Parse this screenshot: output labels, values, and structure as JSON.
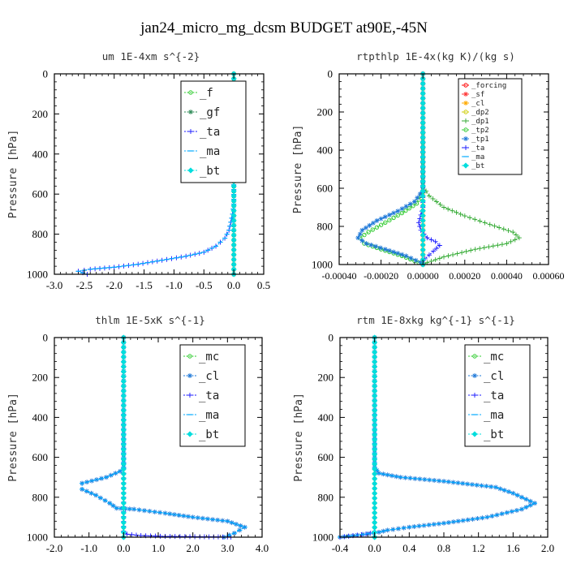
{
  "figure": {
    "title": "jan24_micro_mg_dcsm  BUDGET at90E,-45N"
  },
  "chart_data": [
    {
      "type": "line",
      "title": "um  1E-4xm s^{-2}",
      "ylabel": "Pressure [hPa]",
      "xlim": [
        -3.0,
        0.5
      ],
      "ylim": [
        1000,
        0
      ],
      "xticks": [
        "-3.0",
        "-2.5",
        "-2.0",
        "-1.5",
        "-1.0",
        "-0.5",
        "0.0",
        "0.5"
      ],
      "yticks": [
        "0",
        "200",
        "400",
        "600",
        "800",
        "1000"
      ],
      "legend": [
        "_f",
        "_gf",
        "_ta",
        "_ma",
        "_bt"
      ],
      "series": [
        {
          "name": "_f",
          "color": "#33cc33",
          "marker": "circle",
          "x": [
            0.0,
            0.0
          ],
          "y": [
            0,
            1000
          ]
        },
        {
          "name": "_gf",
          "color": "#2e8b57",
          "marker": "star",
          "x": [
            0.0,
            0.0
          ],
          "y": [
            0,
            1000
          ]
        },
        {
          "name": "_ta",
          "color": "#1a1aff",
          "marker": "plus",
          "x": [
            0.0,
            0.0,
            -0.02,
            -0.05,
            -0.08,
            -0.15,
            -0.3,
            -0.5,
            -0.8,
            -1.2,
            -1.6,
            -2.0,
            -2.4,
            -2.6,
            -2.45
          ],
          "y": [
            0,
            650,
            700,
            740,
            780,
            820,
            860,
            890,
            910,
            930,
            950,
            965,
            975,
            985,
            1000
          ]
        },
        {
          "name": "_ma",
          "color": "#00aaff",
          "marker": "dash",
          "x": [
            0.0,
            0.0,
            -0.02,
            -0.05,
            -0.08,
            -0.15,
            -0.3,
            -0.5,
            -0.8,
            -1.2,
            -1.6,
            -2.0,
            -2.4,
            -2.6,
            -2.45
          ],
          "y": [
            0,
            650,
            700,
            740,
            780,
            820,
            860,
            890,
            910,
            930,
            950,
            965,
            975,
            985,
            1000
          ]
        },
        {
          "name": "_bt",
          "color": "#00dddd",
          "marker": "diamond",
          "x": [
            0.0,
            0.0
          ],
          "y": [
            0,
            1000
          ]
        }
      ]
    },
    {
      "type": "line",
      "title": "rtpthlp  1E-4x(kg K)/(kg s)",
      "ylabel": "Pressure [hPa]",
      "xlim": [
        -0.0004,
        0.0006
      ],
      "ylim": [
        1000,
        0
      ],
      "xticks": [
        "-0.00040",
        "-0.00020",
        "0.00000",
        "0.00020",
        "0.00040",
        "0.00060"
      ],
      "yticks": [
        "0",
        "200",
        "400",
        "600",
        "800",
        "1000"
      ],
      "legend": [
        "_forcing",
        "_sf",
        "_cl",
        "_dp2",
        "_dp1",
        "_tp2",
        "_tp1",
        "_ta",
        "_ma",
        "_bt"
      ],
      "series": [
        {
          "name": "_forcing",
          "color": "#ff0000",
          "marker": "circle",
          "x": [
            0.0,
            0.0
          ],
          "y": [
            0,
            1000
          ]
        },
        {
          "name": "_sf",
          "color": "#ff3333",
          "marker": "star",
          "x": [
            0.0,
            0.0
          ],
          "y": [
            0,
            1000
          ]
        },
        {
          "name": "_cl",
          "color": "#ffaa00",
          "marker": "star",
          "x": [
            0.0,
            0.0
          ],
          "y": [
            0,
            1000
          ]
        },
        {
          "name": "_dp2",
          "color": "#cccc00",
          "marker": "circle",
          "x": [
            0.0,
            0.0
          ],
          "y": [
            0,
            1000
          ]
        },
        {
          "name": "_dp1",
          "color": "#33aa33",
          "marker": "plus",
          "x": [
            0.0,
            0.0,
            3e-05,
            0.0001,
            0.0002,
            0.00032,
            0.00043,
            0.00046,
            0.0004,
            0.00025,
            0.0001,
            2e-05,
            0.0
          ],
          "y": [
            0,
            590,
            640,
            700,
            745,
            790,
            830,
            860,
            890,
            920,
            960,
            990,
            1000
          ]
        },
        {
          "name": "_tp2",
          "color": "#33cc33",
          "marker": "circle",
          "x": [
            0.0,
            0.0,
            -3e-05,
            -0.0001,
            -0.00018,
            -0.00026,
            -0.0003,
            -0.00028,
            -0.0002,
            -0.0001,
            -2e-05,
            0.0
          ],
          "y": [
            0,
            620,
            680,
            730,
            780,
            830,
            860,
            890,
            920,
            955,
            990,
            1000
          ]
        },
        {
          "name": "_tp1",
          "color": "#1e78d8",
          "marker": "star",
          "x": [
            0.0,
            0.0,
            -4e-05,
            -0.00012,
            -0.00022,
            -0.00029,
            -0.00031,
            -0.00027,
            -0.00018,
            -8e-05,
            -1e-05,
            0.0
          ],
          "y": [
            0,
            610,
            670,
            720,
            770,
            820,
            860,
            890,
            920,
            955,
            990,
            1000
          ]
        },
        {
          "name": "_ta",
          "color": "#1a1aff",
          "marker": "plus",
          "x": [
            0.0,
            0.0,
            -1e-05,
            -2e-05,
            -1e-05,
            2e-05,
            6e-05,
            8e-05,
            5e-05,
            1e-05,
            0.0
          ],
          "y": [
            0,
            700,
            740,
            780,
            820,
            860,
            880,
            900,
            930,
            970,
            1000
          ]
        },
        {
          "name": "_ma",
          "color": "#00aaff",
          "marker": "dash",
          "x": [
            0.0,
            0.0
          ],
          "y": [
            0,
            1000
          ]
        },
        {
          "name": "_bt",
          "color": "#00dddd",
          "marker": "diamond",
          "x": [
            0.0,
            0.0
          ],
          "y": [
            0,
            1000
          ]
        }
      ]
    },
    {
      "type": "line",
      "title": "thlm  1E-5xK s^{-1}",
      "ylabel": "Pressure [hPa]",
      "xlim": [
        -2.0,
        4.0
      ],
      "ylim": [
        1000,
        0
      ],
      "xticks": [
        "-2.0",
        "-1.0",
        "0.0",
        "1.0",
        "2.0",
        "3.0",
        "4.0"
      ],
      "yticks": [
        "0",
        "200",
        "400",
        "600",
        "800",
        "1000"
      ],
      "legend": [
        "_mc",
        "_cl",
        "_ta",
        "_ma",
        "_bt"
      ],
      "series": [
        {
          "name": "_mc",
          "color": "#33cc33",
          "marker": "circle",
          "x": [
            0.0,
            0.0
          ],
          "y": [
            0,
            1000
          ]
        },
        {
          "name": "_cl",
          "color": "#1e78d8",
          "marker": "star",
          "x": [
            0.0,
            0.0,
            -0.1,
            -0.5,
            -1.2,
            -1.2,
            -0.8,
            -0.4,
            -0.2,
            0.3,
            1.2,
            2.0,
            3.0,
            3.5,
            3.2,
            2.9
          ],
          "y": [
            0,
            650,
            670,
            700,
            730,
            760,
            790,
            830,
            855,
            860,
            880,
            900,
            920,
            950,
            980,
            1000
          ]
        },
        {
          "name": "_ta",
          "color": "#1a1aff",
          "marker": "plus",
          "x": [
            0.0,
            0.0,
            0.1,
            0.5,
            1.2,
            2.2,
            3.0,
            3.1
          ],
          "y": [
            0,
            970,
            985,
            992,
            996,
            998,
            999,
            1000
          ]
        },
        {
          "name": "_ma",
          "color": "#00aaff",
          "marker": "dash",
          "x": [
            0.0,
            0.0,
            -0.1,
            -0.5,
            -1.2,
            -1.2,
            -0.8,
            -0.4,
            -0.2,
            0.3,
            1.2,
            2.0,
            3.0,
            3.5,
            3.2,
            2.9
          ],
          "y": [
            0,
            650,
            670,
            700,
            730,
            760,
            790,
            830,
            855,
            860,
            880,
            900,
            920,
            950,
            980,
            1000
          ]
        },
        {
          "name": "_bt",
          "color": "#00dddd",
          "marker": "diamond",
          "x": [
            0.0,
            0.0
          ],
          "y": [
            0,
            1000
          ]
        }
      ]
    },
    {
      "type": "line",
      "title": "rtm  1E-8xkg kg^{-1} s^{-1}",
      "ylabel": "Pressure [hPa]",
      "xlim": [
        -0.4,
        2.0
      ],
      "ylim": [
        1000,
        0
      ],
      "xticks": [
        "-0.4",
        "0.0",
        "0.4",
        "0.8",
        "1.2",
        "1.6",
        "2.0"
      ],
      "yticks": [
        "0",
        "200",
        "400",
        "600",
        "800",
        "1000"
      ],
      "legend": [
        "_mc",
        "_cl",
        "_ta",
        "_ma",
        "_bt"
      ],
      "series": [
        {
          "name": "_mc",
          "color": "#33cc33",
          "marker": "circle",
          "x": [
            0.0,
            0.0
          ],
          "y": [
            0,
            1000
          ]
        },
        {
          "name": "_cl",
          "color": "#1e78d8",
          "marker": "star",
          "x": [
            0.0,
            0.0,
            0.05,
            0.3,
            0.8,
            1.4,
            1.6,
            1.75,
            1.85,
            1.7,
            1.3,
            0.8,
            0.4,
            0.15,
            0.05,
            -0.2,
            -0.4
          ],
          "y": [
            0,
            650,
            680,
            700,
            720,
            750,
            780,
            810,
            830,
            860,
            900,
            930,
            950,
            965,
            975,
            990,
            1000
          ]
        },
        {
          "name": "_ta",
          "color": "#1a1aff",
          "marker": "plus",
          "x": [
            0.0,
            0.0,
            -0.1,
            -0.3,
            -0.4
          ],
          "y": [
            0,
            975,
            985,
            995,
            1000
          ]
        },
        {
          "name": "_ma",
          "color": "#00aaff",
          "marker": "dash",
          "x": [
            0.0,
            0.0,
            0.05,
            0.3,
            0.8,
            1.4,
            1.6,
            1.75,
            1.85,
            1.7,
            1.3,
            0.8,
            0.4,
            0.15,
            0.05,
            -0.2,
            -0.4
          ],
          "y": [
            0,
            650,
            680,
            700,
            720,
            750,
            780,
            810,
            830,
            860,
            900,
            930,
            950,
            965,
            975,
            990,
            1000
          ]
        },
        {
          "name": "_bt",
          "color": "#00dddd",
          "marker": "diamond",
          "x": [
            0.0,
            0.0
          ],
          "y": [
            0,
            1000
          ]
        }
      ]
    }
  ]
}
